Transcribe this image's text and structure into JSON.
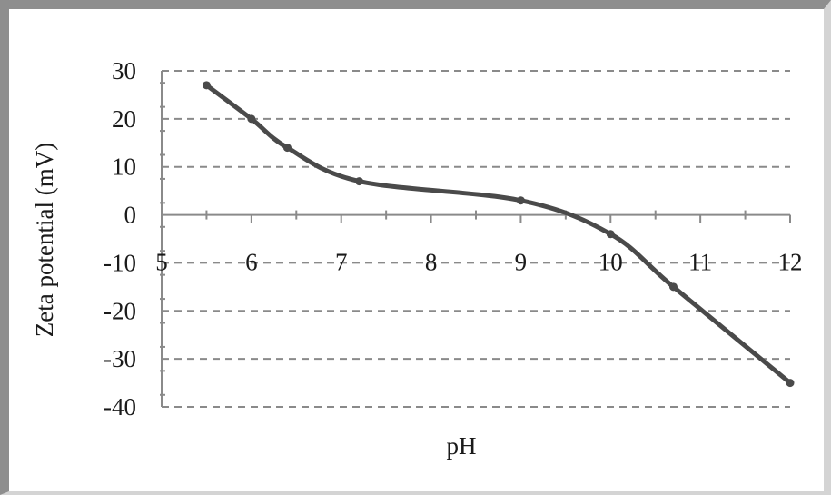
{
  "chart_data": {
    "type": "line",
    "title": "",
    "xlabel": "pH",
    "ylabel": "Zeta potential (mV)",
    "xlim": [
      5,
      12
    ],
    "ylim": [
      -40,
      30
    ],
    "x_ticks": [
      "5",
      "6",
      "7",
      "8",
      "9",
      "10",
      "11",
      "12"
    ],
    "y_ticks": [
      "30",
      "20",
      "10",
      "0",
      "-10",
      "-20",
      "-30",
      "-40"
    ],
    "grid": "horizontal dashed",
    "legend": "none",
    "smooth": true,
    "series": [
      {
        "x": [
          5.5,
          6.0,
          6.4,
          7.2,
          9.0,
          10.0,
          10.7,
          12.0
        ],
        "y": [
          27,
          20,
          14,
          7,
          3,
          -4,
          -15,
          -35
        ]
      }
    ],
    "colors": {
      "line": "#4a4a4a",
      "grid": "#8a8a8a",
      "axis": "#8a8a8a",
      "text": "#1a1a1a"
    }
  }
}
